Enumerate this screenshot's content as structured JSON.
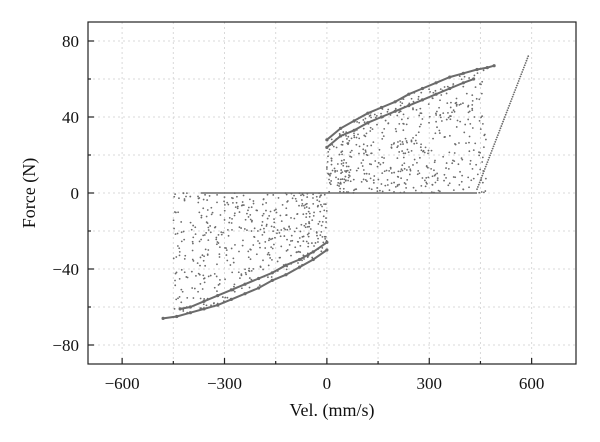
{
  "chart_data": {
    "type": "scatter",
    "title": "",
    "xlabel": "Vel. (mm/s)",
    "ylabel": "Force (N)",
    "xlim": [
      -700,
      730
    ],
    "ylim": [
      -90,
      90
    ],
    "xticks": [
      -600,
      -300,
      0,
      300,
      600
    ],
    "yticks": [
      -80,
      -40,
      0,
      40,
      80
    ],
    "xtick_labels": [
      "−600",
      "−300",
      "0",
      "300",
      "600"
    ],
    "ytick_labels": [
      "−80",
      "−40",
      "0",
      "40",
      "80"
    ],
    "grid": true,
    "legend": "none",
    "color": "#6b6b6b",
    "series": [
      {
        "values_desc": "positive-quadrant hysteresis band (upper edge)",
        "points": [
          [
            0,
            28
          ],
          [
            40,
            34
          ],
          [
            80,
            38
          ],
          [
            120,
            42
          ],
          [
            160,
            45
          ],
          [
            200,
            48
          ],
          [
            240,
            52
          ],
          [
            280,
            55
          ],
          [
            320,
            58
          ],
          [
            360,
            61
          ],
          [
            400,
            63
          ],
          [
            440,
            65
          ],
          [
            470,
            66
          ],
          [
            490,
            67
          ]
        ]
      },
      {
        "values_desc": "positive-quadrant hysteresis band (lower edge)",
        "points": [
          [
            0,
            24
          ],
          [
            40,
            30
          ],
          [
            80,
            33
          ],
          [
            120,
            37
          ],
          [
            160,
            40
          ],
          [
            200,
            43
          ],
          [
            240,
            46
          ],
          [
            280,
            49
          ],
          [
            320,
            52
          ],
          [
            360,
            55
          ],
          [
            400,
            58
          ],
          [
            430,
            60
          ]
        ]
      },
      {
        "values_desc": "negative-quadrant hysteresis band (lower edge)",
        "points": [
          [
            0,
            -30
          ],
          [
            -40,
            -35
          ],
          [
            -80,
            -39
          ],
          [
            -120,
            -43
          ],
          [
            -160,
            -46
          ],
          [
            -200,
            -50
          ],
          [
            -240,
            -53
          ],
          [
            -280,
            -56
          ],
          [
            -320,
            -59
          ],
          [
            -360,
            -61
          ],
          [
            -400,
            -63
          ],
          [
            -440,
            -65
          ],
          [
            -480,
            -66
          ]
        ]
      },
      {
        "values_desc": "negative-quadrant hysteresis band (upper edge)",
        "points": [
          [
            0,
            -26
          ],
          [
            -40,
            -31
          ],
          [
            -80,
            -35
          ],
          [
            -120,
            -38
          ],
          [
            -160,
            -42
          ],
          [
            -200,
            -45
          ],
          [
            -240,
            -48
          ],
          [
            -280,
            -51
          ],
          [
            -320,
            -54
          ],
          [
            -360,
            -57
          ],
          [
            -400,
            -60
          ],
          [
            -430,
            -61
          ]
        ]
      },
      {
        "values_desc": "zero-force lines",
        "points": [
          [
            -370,
            0
          ],
          [
            0,
            0
          ],
          [
            440,
            0
          ]
        ]
      }
    ]
  }
}
